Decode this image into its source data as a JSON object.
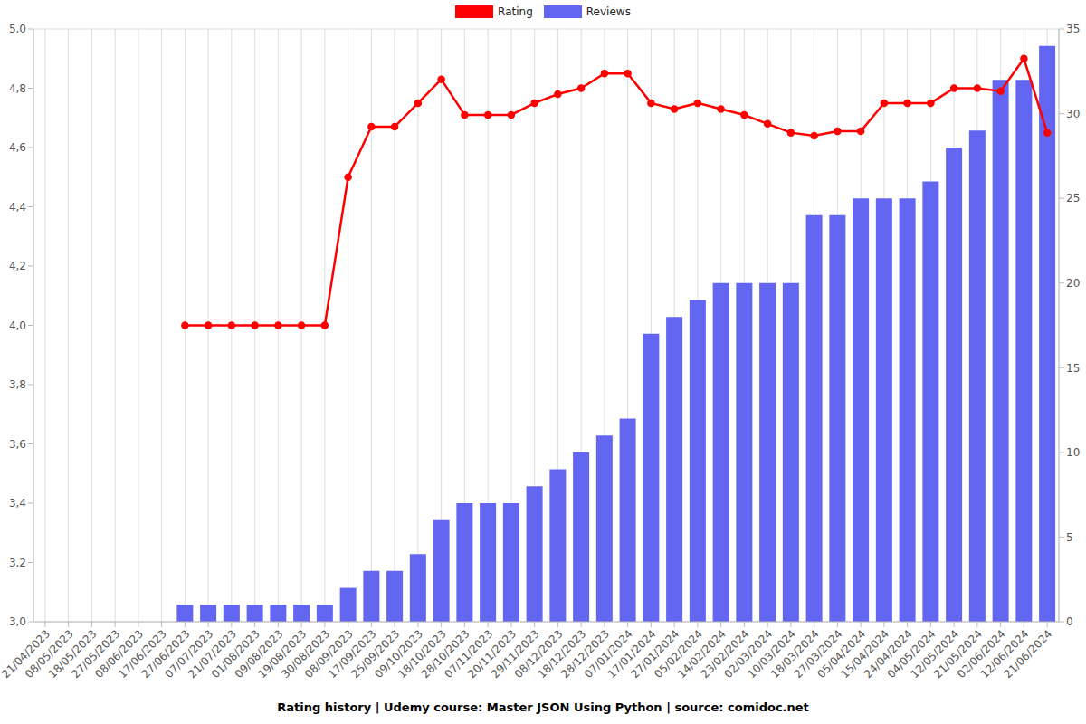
{
  "chart_data": {
    "type": "bar",
    "title": "Rating history | Udemy course: Master JSON Using Python | source: comidoc.net",
    "categories": [
      "21/04/2023",
      "08/05/2023",
      "18/05/2023",
      "27/05/2023",
      "08/06/2023",
      "17/06/2023",
      "27/06/2023",
      "07/07/2023",
      "21/07/2023",
      "01/08/2023",
      "09/08/2023",
      "19/08/2023",
      "30/08/2023",
      "08/09/2023",
      "17/09/2023",
      "25/09/2023",
      "09/10/2023",
      "18/10/2023",
      "28/10/2023",
      "07/11/2023",
      "20/11/2023",
      "29/11/2023",
      "08/12/2023",
      "18/12/2023",
      "28/12/2023",
      "07/01/2024",
      "17/01/2024",
      "27/01/2024",
      "05/02/2024",
      "14/02/2024",
      "23/02/2024",
      "02/03/2024",
      "10/03/2024",
      "18/03/2024",
      "27/03/2024",
      "05/04/2024",
      "15/04/2024",
      "24/04/2024",
      "04/05/2024",
      "12/05/2024",
      "21/05/2024",
      "02/06/2024",
      "12/06/2024",
      "21/06/2024"
    ],
    "series": [
      {
        "name": "Rating",
        "type": "line",
        "color": "#ff0000",
        "marker": "circle",
        "values": [
          null,
          null,
          null,
          null,
          null,
          null,
          4.0,
          4.0,
          4.0,
          4.0,
          4.0,
          4.0,
          4.0,
          4.5,
          4.67,
          4.67,
          4.75,
          4.83,
          4.71,
          4.71,
          4.71,
          4.75,
          4.78,
          4.8,
          4.85,
          4.85,
          4.75,
          4.73,
          4.75,
          4.73,
          4.71,
          4.68,
          4.65,
          4.64,
          4.655,
          4.655,
          4.75,
          4.75,
          4.75,
          4.8,
          4.8,
          4.79,
          4.9,
          4.65
        ]
      },
      {
        "name": "Reviews",
        "type": "bar",
        "color": "#6366f1",
        "axis": "y2",
        "values": [
          null,
          null,
          null,
          null,
          null,
          null,
          1,
          1,
          1,
          1,
          1,
          1,
          1,
          2,
          3,
          3,
          4,
          6,
          7,
          7,
          7,
          8,
          9,
          10,
          11,
          12,
          17,
          18,
          19,
          20,
          20,
          20,
          20,
          24,
          24,
          25,
          25,
          25,
          26,
          28,
          29,
          32,
          32,
          34
        ]
      }
    ],
    "ylim": [
      3,
      5
    ],
    "yticks": [
      {
        "value": 3,
        "label": "3,0"
      },
      {
        "value": 3.2,
        "label": "3,2"
      },
      {
        "value": 3.4,
        "label": "3,4"
      },
      {
        "value": 3.6,
        "label": "3,6"
      },
      {
        "value": 3.8,
        "label": "3,8"
      },
      {
        "value": 4,
        "label": "4,0"
      },
      {
        "value": 4.2,
        "label": "4,2"
      },
      {
        "value": 4.4,
        "label": "4,4"
      },
      {
        "value": 4.6,
        "label": "4,6"
      },
      {
        "value": 4.8,
        "label": "4,8"
      },
      {
        "value": 5,
        "label": "5,0"
      }
    ],
    "y2lim": [
      0,
      35
    ],
    "y2ticks": [
      0,
      5,
      10,
      15,
      20,
      25,
      30,
      35
    ],
    "grid": true,
    "legend": "top"
  }
}
